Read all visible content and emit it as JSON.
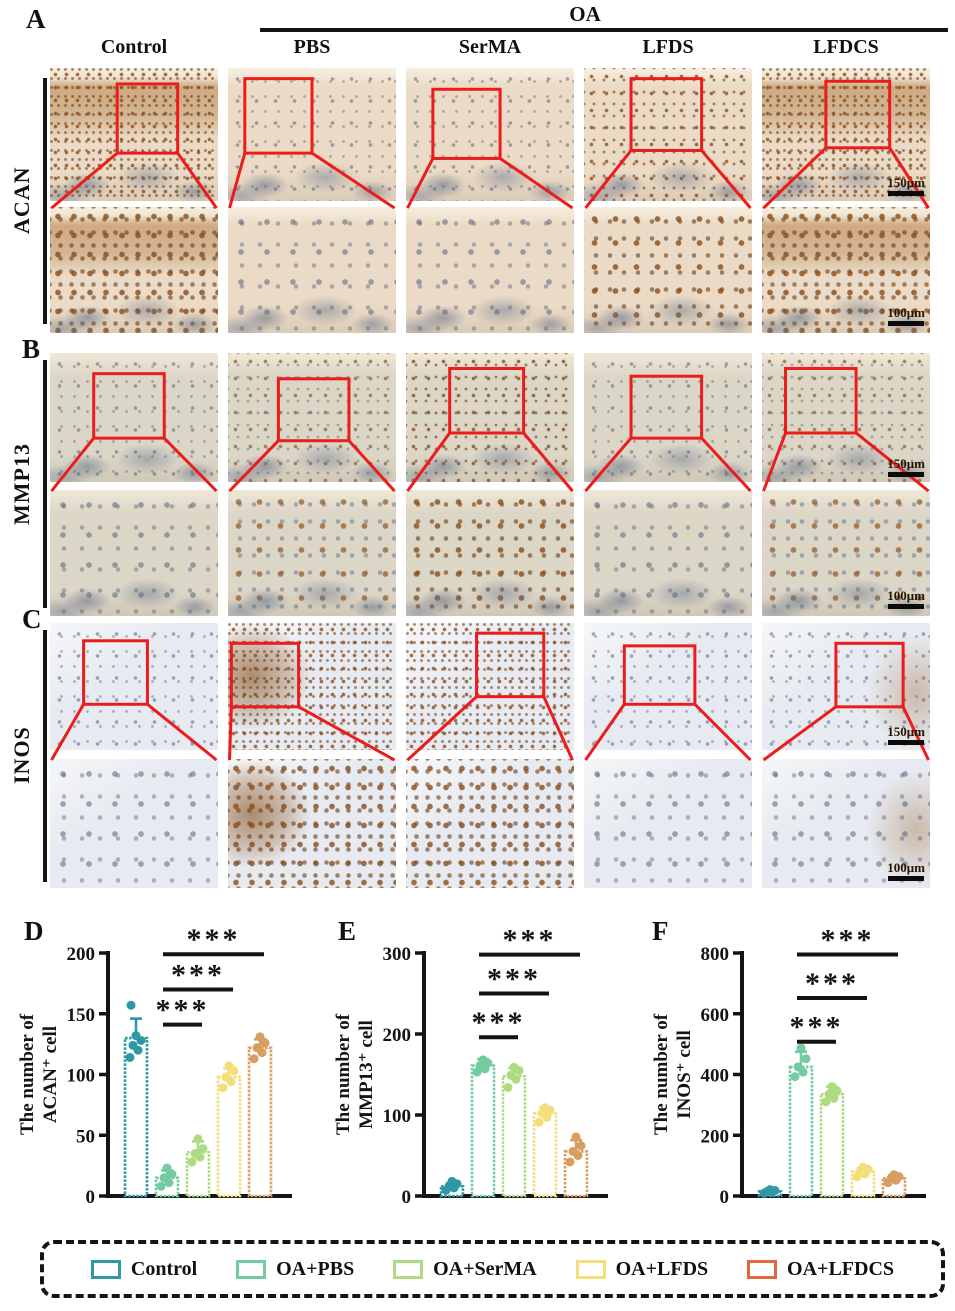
{
  "header": {
    "oa_label": "OA",
    "columns": [
      "Control",
      "PBS",
      "SerMA",
      "LFDS",
      "LFDCS"
    ]
  },
  "panels": [
    {
      "letter": "A",
      "row_label": "ACAN",
      "scale_top": "150μm",
      "scale_bottom": "100μm"
    },
    {
      "letter": "B",
      "row_label": "MMP13",
      "scale_top": "150μm",
      "scale_bottom": "100μm"
    },
    {
      "letter": "C",
      "row_label": "INOS",
      "scale_top": "150μm",
      "scale_bottom": "100μm"
    }
  ],
  "chart_data": [
    {
      "type": "bar",
      "panel": "D",
      "ylabel_lines": [
        "The number of",
        "ACAN⁺ cell"
      ],
      "categories": [
        "Control",
        "OA+PBS",
        "OA+SerMA",
        "OA+LFDS",
        "OA+LFDCS"
      ],
      "values": [
        130,
        15,
        36,
        98,
        122
      ],
      "errors": [
        16,
        6,
        9,
        7,
        7
      ],
      "points": [
        [
          114,
          120,
          124,
          128,
          132,
          157
        ],
        [
          8,
          11,
          15,
          18,
          23
        ],
        [
          28,
          32,
          35,
          39,
          47
        ],
        [
          89,
          94,
          98,
          103,
          107
        ],
        [
          113,
          118,
          122,
          126,
          131
        ]
      ],
      "ylim": [
        0,
        200
      ],
      "yticks": [
        0,
        50,
        100,
        150,
        200
      ],
      "significance": [
        {
          "from": 1,
          "to": 2,
          "label": "***",
          "y": 141
        },
        {
          "from": 1,
          "to": 3,
          "label": "***",
          "y": 170
        },
        {
          "from": 1,
          "to": 4,
          "label": "***",
          "y": 199
        }
      ]
    },
    {
      "type": "bar",
      "panel": "E",
      "ylabel_lines": [
        "The number of",
        "MMP13⁺ cell"
      ],
      "categories": [
        "Control",
        "OA+PBS",
        "OA+SerMA",
        "OA+LFDS",
        "OA+LFDCS"
      ],
      "values": [
        12,
        161,
        148,
        102,
        55
      ],
      "errors": [
        4,
        8,
        10,
        7,
        14
      ],
      "points": [
        [
          7,
          10,
          12,
          15,
          18
        ],
        [
          153,
          157,
          161,
          164,
          168
        ],
        [
          134,
          144,
          149,
          155,
          159
        ],
        [
          91,
          97,
          102,
          106,
          109
        ],
        [
          42,
          50,
          55,
          62,
          73
        ]
      ],
      "ylim": [
        0,
        300
      ],
      "yticks": [
        0,
        100,
        200,
        300
      ],
      "significance": [
        {
          "from": 1,
          "to": 2,
          "label": "***",
          "y": 196
        },
        {
          "from": 1,
          "to": 3,
          "label": "***",
          "y": 250
        },
        {
          "from": 1,
          "to": 4,
          "label": "***",
          "y": 298
        }
      ]
    },
    {
      "type": "bar",
      "panel": "F",
      "ylabel_lines": [
        "The number of",
        "INOS⁺ cell"
      ],
      "categories": [
        "Control",
        "OA+PBS",
        "OA+SerMA",
        "OA+LFDS",
        "OA+LFDCS"
      ],
      "values": [
        15,
        425,
        335,
        80,
        58
      ],
      "errors": [
        5,
        50,
        25,
        13,
        10
      ],
      "points": [
        [
          9,
          12,
          15,
          18,
          21
        ],
        [
          393,
          408,
          425,
          452,
          487
        ],
        [
          310,
          322,
          335,
          346,
          360
        ],
        [
          63,
          72,
          80,
          88,
          95
        ],
        [
          44,
          52,
          58,
          64,
          70
        ]
      ],
      "ylim": [
        0,
        800
      ],
      "yticks": [
        0,
        200,
        400,
        600,
        800
      ],
      "significance": [
        {
          "from": 1,
          "to": 2,
          "label": "***",
          "y": 508
        },
        {
          "from": 1,
          "to": 3,
          "label": "***",
          "y": 652
        },
        {
          "from": 1,
          "to": 4,
          "label": "***",
          "y": 795
        }
      ]
    }
  ],
  "legend": {
    "items": [
      {
        "label": "Control",
        "color": "#2E98A6",
        "bar_color": "#2E98A6"
      },
      {
        "label": "OA+PBS",
        "color": "#72CBA1",
        "bar_color": "#72CBA1"
      },
      {
        "label": "OA+SerMA",
        "color": "#ACDB82",
        "bar_color": "#ACDB82"
      },
      {
        "label": "OA+LFDS",
        "color": "#F3DE7A",
        "bar_color": "#F3DE7A"
      },
      {
        "label": "OA+LFDCS",
        "color": "#E2673A",
        "bar_color": "#D99D60"
      }
    ]
  }
}
